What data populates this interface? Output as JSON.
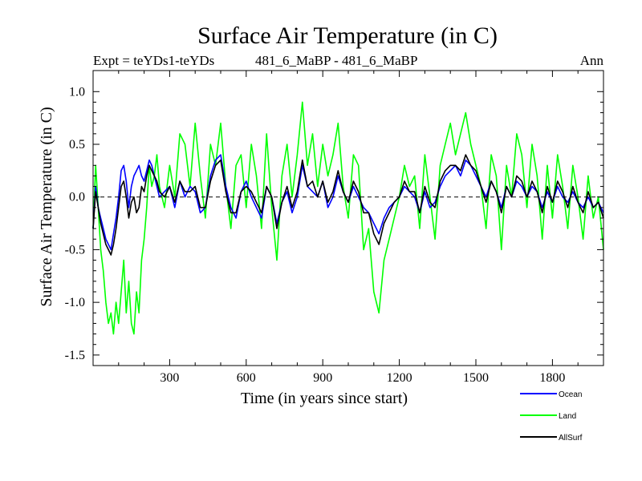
{
  "chart_data": {
    "type": "line",
    "title": "Surface Air Temperature (in C)",
    "subtitle_left": "Expt = teYDs1-teYDs",
    "subtitle_center": "481_6_MaBP - 481_6_MaBP",
    "subtitle_right": "Ann",
    "xlabel": "Time (in years since start)",
    "ylabel": "Surface Air Temperature (in C)",
    "xlim": [
      0,
      2000
    ],
    "ylim": [
      -1.6,
      1.2
    ],
    "xticks": [
      300,
      600,
      900,
      1200,
      1500,
      1800
    ],
    "yticks": [
      -1.5,
      -1.0,
      -0.5,
      0.0,
      0.5,
      1.0
    ],
    "ytick_labels": [
      "-1.5",
      "-1.0",
      "-0.5",
      "0.0",
      "0.5",
      "1.0"
    ],
    "zero_line": true,
    "legend_position": "bottom-right",
    "series": [
      {
        "name": "Land",
        "color": "#00ff00",
        "x": [
          0,
          10,
          20,
          30,
          40,
          50,
          60,
          70,
          80,
          90,
          100,
          110,
          120,
          130,
          140,
          150,
          160,
          170,
          180,
          190,
          200,
          210,
          220,
          230,
          240,
          250,
          260,
          280,
          300,
          320,
          340,
          360,
          380,
          400,
          420,
          440,
          460,
          480,
          500,
          520,
          540,
          560,
          580,
          600,
          620,
          640,
          660,
          680,
          700,
          720,
          740,
          760,
          780,
          800,
          820,
          840,
          860,
          880,
          900,
          920,
          940,
          960,
          980,
          1000,
          1020,
          1040,
          1060,
          1080,
          1100,
          1120,
          1140,
          1160,
          1180,
          1200,
          1220,
          1240,
          1260,
          1280,
          1300,
          1320,
          1340,
          1360,
          1380,
          1400,
          1420,
          1440,
          1460,
          1480,
          1500,
          1520,
          1540,
          1560,
          1580,
          1600,
          1620,
          1640,
          1660,
          1680,
          1700,
          1720,
          1740,
          1760,
          1780,
          1800,
          1820,
          1840,
          1860,
          1880,
          1900,
          1920,
          1940,
          1960,
          1980,
          2000
        ],
        "values": [
          -0.3,
          0.3,
          -0.1,
          -0.5,
          -0.7,
          -1.0,
          -1.2,
          -1.1,
          -1.3,
          -1.0,
          -1.2,
          -0.9,
          -0.6,
          -1.1,
          -0.8,
          -1.2,
          -1.3,
          -0.9,
          -1.1,
          -0.6,
          -0.4,
          -0.1,
          0.3,
          0.1,
          0.2,
          0.4,
          0.1,
          -0.1,
          0.3,
          0.0,
          0.6,
          0.5,
          0.1,
          0.7,
          0.2,
          -0.2,
          0.5,
          0.3,
          0.7,
          0.1,
          -0.3,
          0.3,
          0.4,
          -0.1,
          0.5,
          0.2,
          -0.3,
          0.6,
          -0.1,
          -0.6,
          0.2,
          0.5,
          0.0,
          0.4,
          0.9,
          0.3,
          0.6,
          0.1,
          0.5,
          0.2,
          0.4,
          0.7,
          0.1,
          -0.2,
          0.4,
          0.3,
          -0.5,
          -0.3,
          -0.9,
          -1.1,
          -0.6,
          -0.4,
          -0.2,
          0.0,
          0.3,
          0.1,
          0.2,
          -0.3,
          0.4,
          0.0,
          -0.4,
          0.3,
          0.5,
          0.7,
          0.4,
          0.6,
          0.8,
          0.5,
          0.3,
          0.1,
          -0.3,
          0.4,
          0.2,
          -0.5,
          0.3,
          0.0,
          0.6,
          0.4,
          -0.1,
          0.5,
          0.2,
          -0.4,
          0.3,
          -0.2,
          0.4,
          0.1,
          -0.3,
          0.3,
          0.0,
          -0.4,
          0.2,
          -0.2,
          0.0,
          -0.5
        ]
      },
      {
        "name": "Ocean",
        "color": "#0000ff",
        "x": [
          0,
          10,
          20,
          30,
          40,
          50,
          60,
          70,
          80,
          90,
          100,
          110,
          120,
          130,
          140,
          150,
          160,
          170,
          180,
          190,
          200,
          210,
          220,
          230,
          240,
          250,
          260,
          280,
          300,
          320,
          340,
          360,
          380,
          400,
          420,
          440,
          460,
          480,
          500,
          520,
          540,
          560,
          580,
          600,
          620,
          640,
          660,
          680,
          700,
          720,
          740,
          760,
          780,
          800,
          820,
          840,
          860,
          880,
          900,
          920,
          940,
          960,
          980,
          1000,
          1020,
          1040,
          1060,
          1080,
          1100,
          1120,
          1140,
          1160,
          1180,
          1200,
          1220,
          1240,
          1260,
          1280,
          1300,
          1320,
          1340,
          1360,
          1380,
          1400,
          1420,
          1440,
          1460,
          1480,
          1500,
          1520,
          1540,
          1560,
          1580,
          1600,
          1620,
          1640,
          1660,
          1680,
          1700,
          1720,
          1740,
          1760,
          1780,
          1800,
          1820,
          1840,
          1860,
          1880,
          1900,
          1920,
          1940,
          1960,
          1980,
          2000
        ],
        "values": [
          -0.3,
          0.1,
          -0.1,
          -0.2,
          -0.3,
          -0.4,
          -0.45,
          -0.5,
          -0.35,
          -0.2,
          0.0,
          0.25,
          0.3,
          0.15,
          -0.1,
          0.1,
          0.2,
          0.25,
          0.3,
          0.2,
          0.15,
          0.25,
          0.35,
          0.3,
          0.2,
          0.1,
          0.0,
          0.05,
          0.1,
          -0.1,
          0.15,
          0.0,
          0.1,
          0.05,
          -0.15,
          -0.1,
          0.2,
          0.35,
          0.4,
          0.1,
          -0.1,
          -0.2,
          0.05,
          0.15,
          0.0,
          -0.1,
          -0.2,
          0.1,
          0.0,
          -0.25,
          -0.05,
          0.05,
          -0.15,
          0.0,
          0.3,
          0.1,
          0.05,
          0.0,
          0.15,
          -0.1,
          0.0,
          0.2,
          0.05,
          -0.05,
          0.1,
          0.0,
          -0.1,
          -0.15,
          -0.25,
          -0.35,
          -0.2,
          -0.1,
          -0.05,
          0.0,
          0.1,
          0.05,
          0.0,
          -0.15,
          0.05,
          -0.1,
          -0.05,
          0.1,
          0.2,
          0.25,
          0.3,
          0.2,
          0.35,
          0.3,
          0.2,
          0.1,
          0.0,
          0.15,
          0.05,
          -0.1,
          0.1,
          0.0,
          0.15,
          0.1,
          0.0,
          0.1,
          0.05,
          -0.1,
          0.05,
          -0.05,
          0.1,
          0.0,
          -0.05,
          0.05,
          -0.05,
          -0.1,
          0.0,
          -0.1,
          -0.05,
          -0.15
        ]
      },
      {
        "name": "AllSurf",
        "color": "#000000",
        "x": [
          0,
          10,
          20,
          30,
          40,
          50,
          60,
          70,
          80,
          90,
          100,
          110,
          120,
          130,
          140,
          150,
          160,
          170,
          180,
          190,
          200,
          210,
          220,
          230,
          240,
          250,
          260,
          280,
          300,
          320,
          340,
          360,
          380,
          400,
          420,
          440,
          460,
          480,
          500,
          520,
          540,
          560,
          580,
          600,
          620,
          640,
          660,
          680,
          700,
          720,
          740,
          760,
          780,
          800,
          820,
          840,
          860,
          880,
          900,
          920,
          940,
          960,
          980,
          1000,
          1020,
          1040,
          1060,
          1080,
          1100,
          1120,
          1140,
          1160,
          1180,
          1200,
          1220,
          1240,
          1260,
          1280,
          1300,
          1320,
          1340,
          1360,
          1380,
          1400,
          1420,
          1440,
          1460,
          1480,
          1500,
          1520,
          1540,
          1560,
          1580,
          1600,
          1620,
          1640,
          1660,
          1680,
          1700,
          1720,
          1740,
          1760,
          1780,
          1800,
          1820,
          1840,
          1860,
          1880,
          1900,
          1920,
          1940,
          1960,
          1980,
          2000
        ],
        "values": [
          -0.3,
          0.05,
          -0.1,
          -0.25,
          -0.35,
          -0.45,
          -0.5,
          -0.55,
          -0.45,
          -0.3,
          -0.1,
          0.1,
          0.15,
          0.0,
          -0.2,
          -0.05,
          0.0,
          -0.15,
          -0.1,
          0.1,
          0.05,
          0.2,
          0.3,
          0.25,
          0.2,
          0.15,
          0.05,
          0.0,
          0.1,
          -0.05,
          0.15,
          0.05,
          0.05,
          0.1,
          -0.1,
          -0.1,
          0.15,
          0.3,
          0.35,
          0.05,
          -0.15,
          -0.15,
          0.05,
          0.1,
          0.05,
          -0.05,
          -0.15,
          0.1,
          0.0,
          -0.3,
          -0.05,
          0.1,
          -0.1,
          0.05,
          0.35,
          0.1,
          0.15,
          0.0,
          0.15,
          -0.05,
          0.05,
          0.25,
          0.05,
          -0.05,
          0.15,
          0.05,
          -0.15,
          -0.15,
          -0.35,
          -0.45,
          -0.25,
          -0.15,
          -0.05,
          0.0,
          0.15,
          0.05,
          0.05,
          -0.15,
          0.1,
          -0.05,
          -0.1,
          0.15,
          0.25,
          0.3,
          0.3,
          0.25,
          0.4,
          0.3,
          0.25,
          0.1,
          -0.05,
          0.15,
          0.05,
          -0.15,
          0.1,
          0.0,
          0.2,
          0.15,
          0.0,
          0.15,
          0.05,
          -0.15,
          0.1,
          -0.05,
          0.15,
          0.05,
          -0.1,
          0.1,
          -0.05,
          -0.15,
          0.05,
          -0.1,
          -0.05,
          -0.2
        ]
      }
    ]
  }
}
